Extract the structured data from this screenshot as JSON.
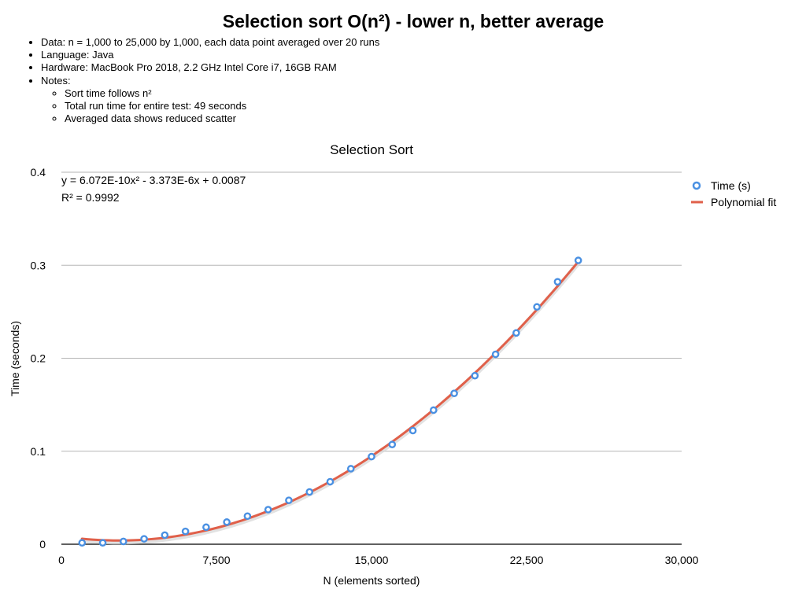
{
  "header": {
    "title": "Selection sort O(n²) - lower n, better average",
    "notes": [
      "Data: n = 1,000 to 25,000 by 1,000, each data point averaged over 20 runs",
      "Language: Java",
      "Hardware: MacBook Pro 2018, 2.2 GHz Intel Core i7, 16GB RAM",
      "Notes:"
    ],
    "subnotes": [
      "Sort time follows n²",
      "Total run time for entire test: 49 seconds",
      "Averaged data shows reduced scatter"
    ]
  },
  "chart_data": {
    "type": "scatter",
    "title": "Selection Sort",
    "xlabel": "N (elements sorted)",
    "ylabel": "Time (seconds)",
    "xlim": [
      0,
      30000
    ],
    "ylim": [
      0,
      0.4
    ],
    "xticks": [
      0,
      7500,
      15000,
      22500,
      30000
    ],
    "xtick_labels": [
      "0",
      "7,500",
      "15,000",
      "22,500",
      "30,000"
    ],
    "yticks": [
      0,
      0.1,
      0.2,
      0.3,
      0.4
    ],
    "ytick_labels": [
      "0",
      "0.1",
      "0.2",
      "0.3",
      "0.4"
    ],
    "grid": "horizontal",
    "legend_position": "top-right",
    "series": [
      {
        "name": "Time (s)",
        "kind": "points",
        "color": "#4a90e2",
        "x": [
          1000,
          2000,
          3000,
          4000,
          5000,
          6000,
          7000,
          8000,
          9000,
          10000,
          11000,
          12000,
          13000,
          14000,
          15000,
          16000,
          17000,
          18000,
          19000,
          20000,
          21000,
          22000,
          23000,
          24000,
          25000
        ],
        "y": [
          0.0015,
          0.0015,
          0.003,
          0.0058,
          0.0098,
          0.0138,
          0.0183,
          0.0238,
          0.0302,
          0.0372,
          0.0472,
          0.0562,
          0.0672,
          0.0812,
          0.0942,
          0.1072,
          0.1222,
          0.1442,
          0.1622,
          0.1812,
          0.2042,
          0.2272,
          0.2552,
          0.2822,
          0.3052
        ]
      },
      {
        "name": "Polynomial fit",
        "kind": "trendline",
        "color": "#e0604a",
        "coefficients": {
          "a": 6.072e-10,
          "b": -3.373e-06,
          "c": 0.0087
        },
        "range": [
          1000,
          25000
        ]
      }
    ],
    "annotations": {
      "equation": "y = 6.072E-10x² - 3.373E-6x + 0.0087",
      "r_squared": "R² = 0.9992"
    }
  }
}
